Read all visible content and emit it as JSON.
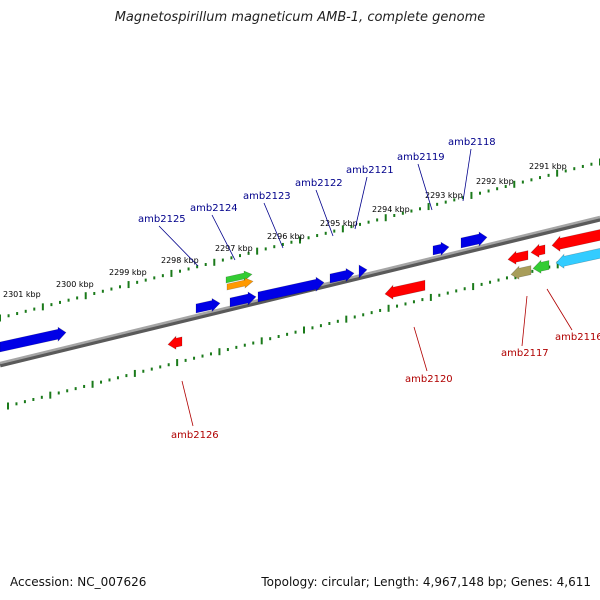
{
  "title": "Magnetospirillum magneticum AMB-1, complete genome",
  "footer": {
    "accession": "Accession: NC_007626",
    "topology": "Topology: circular; Length: 4,967,148 bp; Genes: 4,611"
  },
  "colors": {
    "backbone": "#7d7d7d",
    "tick": "#1a7a1a",
    "forward_gene": "#0000e6",
    "reverse_gene": "#ff0000",
    "forward_label": "#00008b",
    "reverse_label": "#b00000",
    "green_gene": "#33cc33",
    "orange_gene": "#ff9900",
    "cyan_gene": "#33ccff",
    "olive_gene": "#a89d5a"
  },
  "kbp_labels": [
    "2291 kbp",
    "2292 kbp",
    "2293 kbp",
    "2294 kbp",
    "2295 kbp",
    "2296 kbp",
    "2297 kbp",
    "2298 kbp",
    "2299 kbp",
    "2300 kbp",
    "2301 kbp"
  ],
  "gene_labels_forward": [
    "amb2118",
    "amb2119",
    "amb2121",
    "amb2122",
    "amb2123",
    "amb2124",
    "amb2125"
  ],
  "gene_labels_reverse": [
    "amb2116",
    "amb2117",
    "amb2120",
    "amb2126"
  ]
}
